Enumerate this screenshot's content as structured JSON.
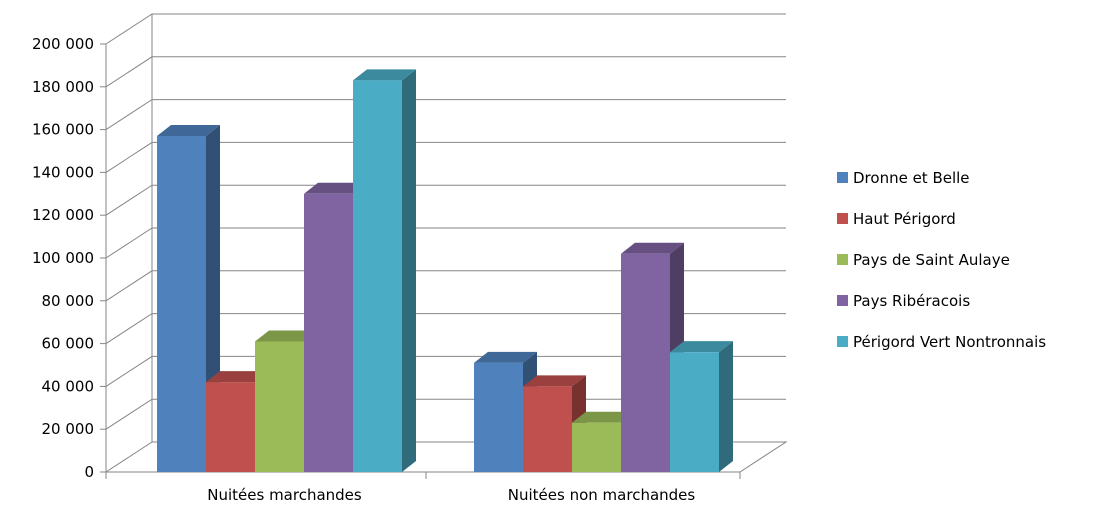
{
  "chart_data": {
    "type": "bar",
    "categories": [
      "Nuitées marchandes",
      "Nuitées non marchandes"
    ],
    "series": [
      {
        "name": "Dronne et Belle",
        "values": [
          157000,
          51000
        ],
        "color": "#4F81BD"
      },
      {
        "name": "Haut Périgord",
        "values": [
          42000,
          40000
        ],
        "color": "#C0504D"
      },
      {
        "name": "Pays de Saint Aulaye",
        "values": [
          61000,
          23000
        ],
        "color": "#9BBB59"
      },
      {
        "name": "Pays Ribéracois",
        "values": [
          130000,
          102000
        ],
        "color": "#8064A2"
      },
      {
        "name": "Périgord Vert Nontronnais",
        "values": [
          183000,
          56000
        ],
        "color": "#4BACC6"
      }
    ],
    "ylim": [
      0,
      200000
    ],
    "yticks": [
      "0",
      "20 000",
      "40 000",
      "60 000",
      "80 000",
      "100 000",
      "120 000",
      "140 000",
      "160 000",
      "180 000",
      "200 000"
    ],
    "grid": true,
    "legend_position": "right",
    "style": "3d-clustered-column"
  }
}
